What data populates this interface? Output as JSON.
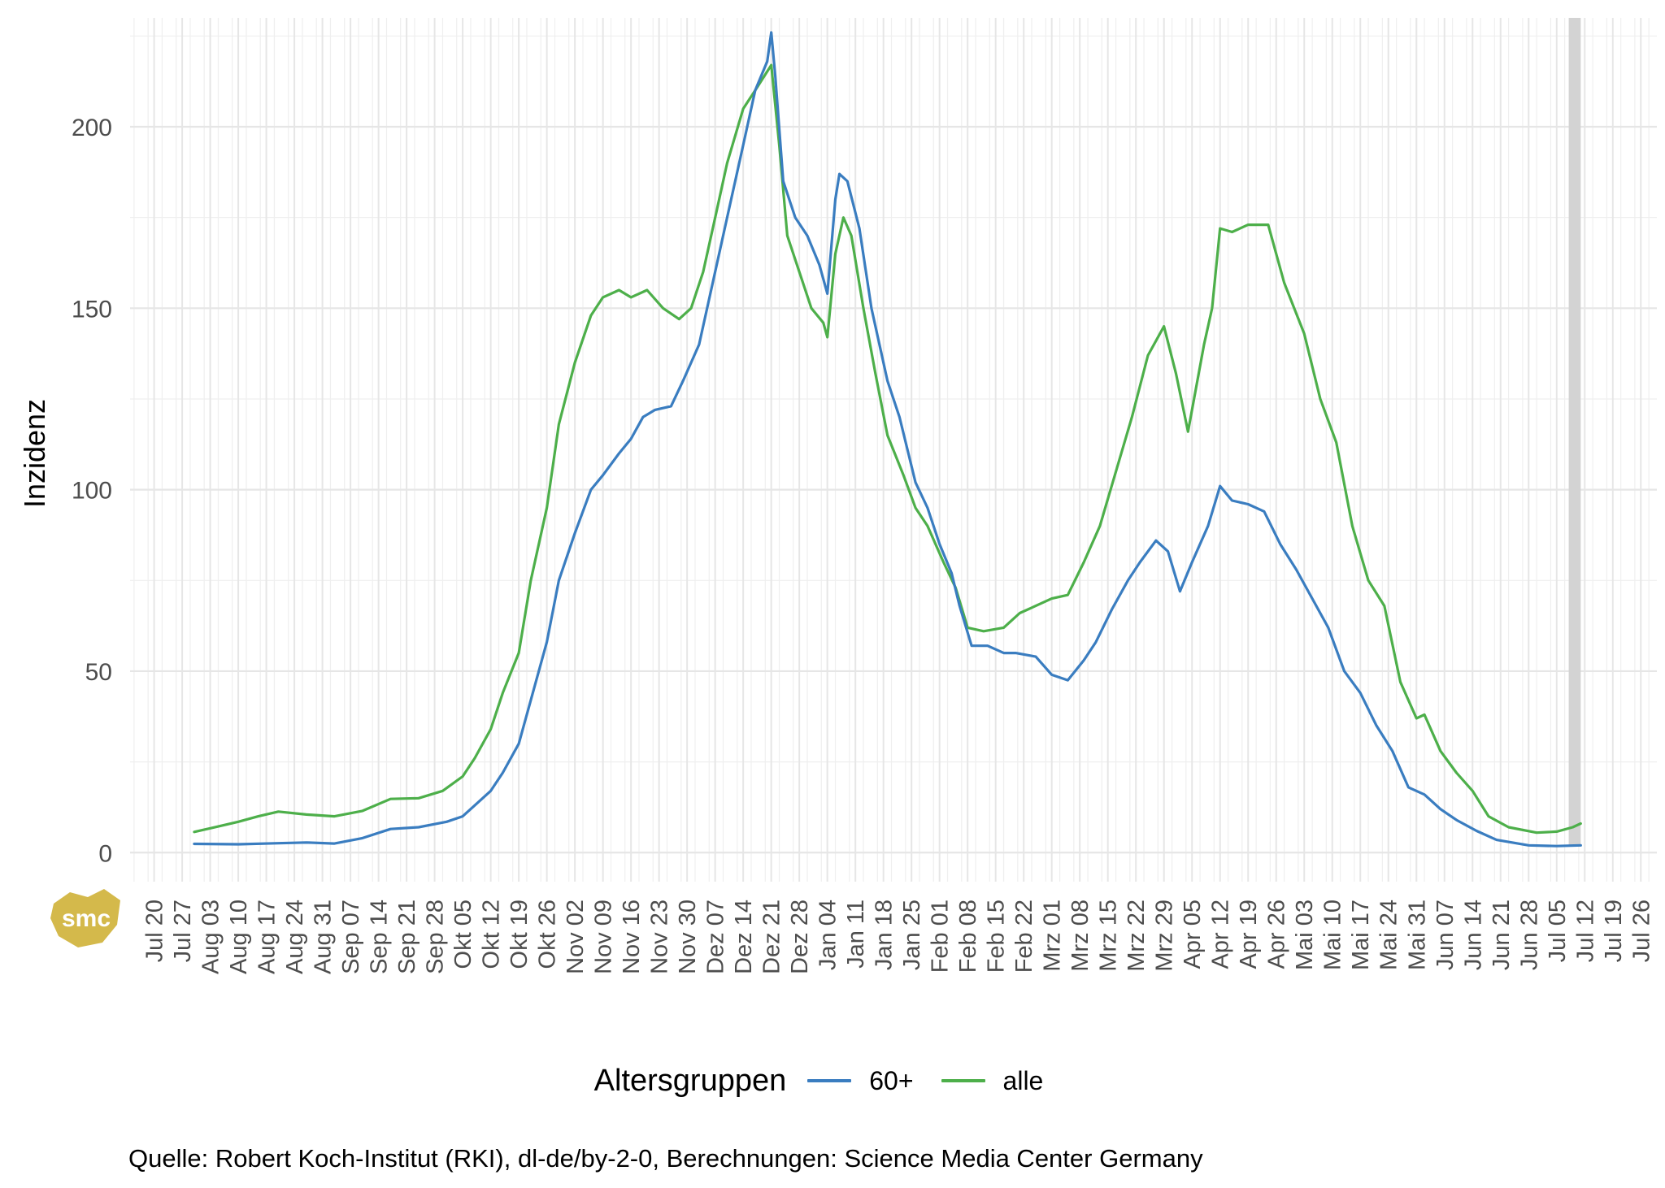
{
  "chart_data": {
    "type": "line",
    "ylabel": "Inzidenz",
    "xlabel": "",
    "ylim": [
      -8,
      230
    ],
    "yticks": [
      0,
      50,
      100,
      150,
      200
    ],
    "grid": true,
    "legend_position": "bottom",
    "legend_title": "Altersgruppen",
    "x_axis_start_date": "2020-07-20",
    "x_axis_end_date": "2021-07-26",
    "x_range": [
      "2020-07-14",
      "2021-07-30"
    ],
    "x_tick_labels": [
      "Jul 20",
      "Jul 27",
      "Aug 03",
      "Aug 10",
      "Aug 17",
      "Aug 24",
      "Aug 31",
      "Sep 07",
      "Sep 14",
      "Sep 21",
      "Sep 28",
      "Okt 05",
      "Okt 12",
      "Okt 19",
      "Okt 26",
      "Nov 02",
      "Nov 09",
      "Nov 16",
      "Nov 23",
      "Nov 30",
      "Dez 07",
      "Dez 14",
      "Dez 21",
      "Dez 28",
      "Jan 04",
      "Jan 11",
      "Jan 18",
      "Jan 25",
      "Feb 01",
      "Feb 08",
      "Feb 15",
      "Feb 22",
      "Mrz 01",
      "Mrz 08",
      "Mrz 15",
      "Mrz 22",
      "Mrz 29",
      "Apr 05",
      "Apr 12",
      "Apr 19",
      "Apr 26",
      "Mai 03",
      "Mai 10",
      "Mai 17",
      "Mai 24",
      "Mai 31",
      "Jun 07",
      "Jun 14",
      "Jun 21",
      "Jun 28",
      "Jul 05",
      "Jul 12",
      "Jul 19",
      "Jul 26"
    ],
    "highlight_band": {
      "from": "2021-07-08",
      "to": "2021-07-11",
      "color": "#d3d3d3"
    },
    "series": [
      {
        "name": "60+",
        "color": "#3a7dc0",
        "points": [
          [
            "2020-07-30",
            2.4
          ],
          [
            "2020-08-10",
            2.3
          ],
          [
            "2020-08-20",
            2.6
          ],
          [
            "2020-08-27",
            2.8
          ],
          [
            "2020-09-03",
            2.5
          ],
          [
            "2020-09-10",
            4
          ],
          [
            "2020-09-17",
            6.5
          ],
          [
            "2020-09-24",
            7
          ],
          [
            "2020-10-01",
            8.5
          ],
          [
            "2020-10-05",
            10
          ],
          [
            "2020-10-08",
            13
          ],
          [
            "2020-10-12",
            17
          ],
          [
            "2020-10-15",
            22
          ],
          [
            "2020-10-19",
            30
          ],
          [
            "2020-10-22",
            42
          ],
          [
            "2020-10-26",
            58
          ],
          [
            "2020-10-29",
            75
          ],
          [
            "2020-11-02",
            88
          ],
          [
            "2020-11-06",
            100
          ],
          [
            "2020-11-09",
            104
          ],
          [
            "2020-11-13",
            110
          ],
          [
            "2020-11-16",
            114
          ],
          [
            "2020-11-19",
            120
          ],
          [
            "2020-11-22",
            122
          ],
          [
            "2020-11-26",
            123
          ],
          [
            "2020-11-29",
            130
          ],
          [
            "2020-12-03",
            140
          ],
          [
            "2020-12-06",
            155
          ],
          [
            "2020-12-10",
            175
          ],
          [
            "2020-12-14",
            195
          ],
          [
            "2020-12-17",
            210
          ],
          [
            "2020-12-20",
            218
          ],
          [
            "2020-12-21",
            226
          ],
          [
            "2020-12-22",
            214
          ],
          [
            "2020-12-24",
            185
          ],
          [
            "2020-12-27",
            175
          ],
          [
            "2020-12-30",
            170
          ],
          [
            "2021-01-02",
            162
          ],
          [
            "2021-01-04",
            154
          ],
          [
            "2021-01-06",
            180
          ],
          [
            "2021-01-07",
            187
          ],
          [
            "2021-01-09",
            185
          ],
          [
            "2021-01-12",
            172
          ],
          [
            "2021-01-15",
            150
          ],
          [
            "2021-01-19",
            130
          ],
          [
            "2021-01-22",
            120
          ],
          [
            "2021-01-26",
            102
          ],
          [
            "2021-01-29",
            95
          ],
          [
            "2021-02-01",
            85
          ],
          [
            "2021-02-04",
            77
          ],
          [
            "2021-02-06",
            68
          ],
          [
            "2021-02-09",
            57
          ],
          [
            "2021-02-13",
            57
          ],
          [
            "2021-02-17",
            55
          ],
          [
            "2021-02-20",
            55
          ],
          [
            "2021-02-25",
            54
          ],
          [
            "2021-03-01",
            49
          ],
          [
            "2021-03-05",
            47.5
          ],
          [
            "2021-03-09",
            53
          ],
          [
            "2021-03-12",
            58
          ],
          [
            "2021-03-16",
            67
          ],
          [
            "2021-03-20",
            75
          ],
          [
            "2021-03-23",
            80
          ],
          [
            "2021-03-27",
            86
          ],
          [
            "2021-03-30",
            83
          ],
          [
            "2021-04-02",
            72
          ],
          [
            "2021-04-05",
            80
          ],
          [
            "2021-04-09",
            90
          ],
          [
            "2021-04-12",
            101
          ],
          [
            "2021-04-15",
            97
          ],
          [
            "2021-04-19",
            96
          ],
          [
            "2021-04-23",
            94
          ],
          [
            "2021-04-27",
            85
          ],
          [
            "2021-05-01",
            78
          ],
          [
            "2021-05-05",
            70
          ],
          [
            "2021-05-09",
            62
          ],
          [
            "2021-05-13",
            50
          ],
          [
            "2021-05-17",
            44
          ],
          [
            "2021-05-21",
            35
          ],
          [
            "2021-05-25",
            28
          ],
          [
            "2021-05-29",
            18
          ],
          [
            "2021-06-02",
            16
          ],
          [
            "2021-06-06",
            12
          ],
          [
            "2021-06-10",
            9
          ],
          [
            "2021-06-15",
            6
          ],
          [
            "2021-06-20",
            3.5
          ],
          [
            "2021-06-28",
            2
          ],
          [
            "2021-07-05",
            1.8
          ],
          [
            "2021-07-11",
            2
          ]
        ]
      },
      {
        "name": "alle",
        "color": "#4daf4a",
        "points": [
          [
            "2020-07-30",
            5.7
          ],
          [
            "2020-08-05",
            7.2
          ],
          [
            "2020-08-10",
            8.5
          ],
          [
            "2020-08-15",
            10
          ],
          [
            "2020-08-20",
            11.3
          ],
          [
            "2020-08-27",
            10.5
          ],
          [
            "2020-09-03",
            10
          ],
          [
            "2020-09-10",
            11.5
          ],
          [
            "2020-09-17",
            14.8
          ],
          [
            "2020-09-24",
            15
          ],
          [
            "2020-09-30",
            17
          ],
          [
            "2020-10-05",
            21
          ],
          [
            "2020-10-08",
            26
          ],
          [
            "2020-10-12",
            34
          ],
          [
            "2020-10-15",
            44
          ],
          [
            "2020-10-19",
            55
          ],
          [
            "2020-10-22",
            75
          ],
          [
            "2020-10-26",
            95
          ],
          [
            "2020-10-29",
            118
          ],
          [
            "2020-11-02",
            135
          ],
          [
            "2020-11-06",
            148
          ],
          [
            "2020-11-09",
            153
          ],
          [
            "2020-11-13",
            155
          ],
          [
            "2020-11-16",
            153
          ],
          [
            "2020-11-20",
            155
          ],
          [
            "2020-11-24",
            150
          ],
          [
            "2020-11-28",
            147
          ],
          [
            "2020-12-01",
            150
          ],
          [
            "2020-12-04",
            160
          ],
          [
            "2020-12-07",
            175
          ],
          [
            "2020-12-10",
            190
          ],
          [
            "2020-12-14",
            205
          ],
          [
            "2020-12-17",
            210
          ],
          [
            "2020-12-21",
            217
          ],
          [
            "2020-12-23",
            195
          ],
          [
            "2020-12-25",
            170
          ],
          [
            "2020-12-28",
            160
          ],
          [
            "2020-12-31",
            150
          ],
          [
            "2021-01-03",
            146
          ],
          [
            "2021-01-04",
            142
          ],
          [
            "2021-01-06",
            165
          ],
          [
            "2021-01-08",
            175
          ],
          [
            "2021-01-10",
            170
          ],
          [
            "2021-01-13",
            150
          ],
          [
            "2021-01-16",
            132
          ],
          [
            "2021-01-19",
            115
          ],
          [
            "2021-01-23",
            104
          ],
          [
            "2021-01-26",
            95
          ],
          [
            "2021-01-29",
            90
          ],
          [
            "2021-02-02",
            80
          ],
          [
            "2021-02-05",
            73
          ],
          [
            "2021-02-08",
            62
          ],
          [
            "2021-02-12",
            61
          ],
          [
            "2021-02-17",
            62
          ],
          [
            "2021-02-21",
            66
          ],
          [
            "2021-02-25",
            68
          ],
          [
            "2021-03-01",
            70
          ],
          [
            "2021-03-05",
            71
          ],
          [
            "2021-03-09",
            80
          ],
          [
            "2021-03-13",
            90
          ],
          [
            "2021-03-17",
            105
          ],
          [
            "2021-03-21",
            120
          ],
          [
            "2021-03-25",
            137
          ],
          [
            "2021-03-29",
            145
          ],
          [
            "2021-04-01",
            132
          ],
          [
            "2021-04-04",
            116
          ],
          [
            "2021-04-08",
            140
          ],
          [
            "2021-04-10",
            150
          ],
          [
            "2021-04-12",
            172
          ],
          [
            "2021-04-15",
            171
          ],
          [
            "2021-04-19",
            173
          ],
          [
            "2021-04-24",
            173
          ],
          [
            "2021-04-28",
            157
          ],
          [
            "2021-05-03",
            143
          ],
          [
            "2021-05-07",
            125
          ],
          [
            "2021-05-11",
            113
          ],
          [
            "2021-05-15",
            90
          ],
          [
            "2021-05-19",
            75
          ],
          [
            "2021-05-23",
            68
          ],
          [
            "2021-05-27",
            47
          ],
          [
            "2021-05-31",
            37
          ],
          [
            "2021-06-02",
            38
          ],
          [
            "2021-06-06",
            28
          ],
          [
            "2021-06-10",
            22
          ],
          [
            "2021-06-14",
            17
          ],
          [
            "2021-06-18",
            10
          ],
          [
            "2021-06-23",
            7
          ],
          [
            "2021-06-30",
            5.5
          ],
          [
            "2021-07-05",
            5.8
          ],
          [
            "2021-07-09",
            7
          ],
          [
            "2021-07-11",
            8
          ]
        ]
      }
    ]
  },
  "caption": "Quelle: Robert Koch-Institut (RKI), dl-de/by-2-0, Berechnungen: Science Media Center Germany",
  "logo": {
    "text": "smc",
    "color": "#d4b94b"
  }
}
